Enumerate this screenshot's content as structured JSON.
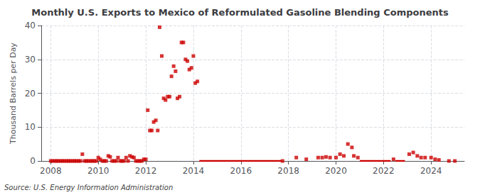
{
  "chart_data": {
    "type": "scatter",
    "title": "Monthly U.S. Exports to Mexico of Reformulated Gasoline Blending Components",
    "ylabel": "Thousand Barrels per Day",
    "annotation": "Source: U.S. Energy Information Administration",
    "xlim": [
      2007.6,
      2025.4
    ],
    "xticks": [
      2008,
      2010,
      2012,
      2014,
      2016,
      2018,
      2020,
      2022,
      2024
    ],
    "ylim": [
      0,
      40
    ],
    "yticks": [
      0,
      10,
      20,
      30,
      40
    ],
    "grid": true,
    "series": [
      {
        "type": "scatter",
        "color": "#cc0000",
        "marker": "square",
        "x": [
          2008.0,
          2008.08,
          2008.17,
          2008.25,
          2008.33,
          2008.42,
          2008.5,
          2008.58,
          2008.67,
          2008.75,
          2008.83,
          2008.92,
          2009.0,
          2009.08,
          2009.17,
          2009.25,
          2009.33,
          2009.42,
          2009.5,
          2009.58,
          2009.67,
          2009.75,
          2009.83,
          2009.92,
          2010.0,
          2010.08,
          2010.17,
          2010.25,
          2010.33,
          2010.42,
          2010.5,
          2010.58,
          2010.67,
          2010.75,
          2010.83,
          2010.92,
          2011.0,
          2011.08,
          2011.17,
          2011.25,
          2011.33,
          2011.42,
          2011.5,
          2011.58,
          2011.67,
          2011.75,
          2011.83,
          2011.92,
          2012.0,
          2012.08,
          2012.17,
          2012.25,
          2012.33,
          2012.42,
          2012.5,
          2012.58,
          2012.67,
          2012.75,
          2012.83,
          2012.92,
          2013.0,
          2013.08,
          2013.17,
          2013.25,
          2013.33,
          2013.42,
          2013.5,
          2013.58,
          2013.67,
          2013.75,
          2013.83,
          2013.92,
          2014.0,
          2014.08,
          2014.17,
          2017.75,
          2018.33,
          2018.75,
          2019.25,
          2019.42,
          2019.58,
          2019.75,
          2020.0,
          2020.17,
          2020.33,
          2020.5,
          2020.67,
          2020.75,
          2020.92,
          2022.42,
          2023.08,
          2023.25,
          2023.42,
          2023.58,
          2023.75,
          2024.0,
          2024.17,
          2024.33,
          2024.75,
          2025.0
        ],
        "values": [
          0.0,
          0.0,
          0.0,
          0.0,
          0.0,
          0.0,
          0.0,
          0.0,
          0.0,
          0.0,
          0.0,
          0.0,
          0.0,
          0.0,
          0.0,
          0.0,
          2.0,
          0.0,
          0.0,
          0.0,
          0.0,
          0.0,
          0.0,
          0.0,
          1.0,
          0.5,
          0.0,
          0.0,
          0.0,
          1.5,
          1.2,
          0.0,
          0.0,
          0.0,
          1.0,
          0.0,
          0.0,
          0.0,
          1.0,
          0.0,
          1.5,
          1.2,
          1.0,
          0.0,
          0.0,
          0.0,
          0.0,
          0.5,
          0.5,
          15.0,
          9.0,
          9.0,
          11.5,
          12.0,
          9.0,
          39.5,
          31.0,
          18.5,
          18.0,
          19.0,
          19.0,
          25.0,
          28.0,
          26.5,
          18.5,
          19.0,
          35.0,
          35.0,
          30.0,
          29.5,
          27.0,
          27.5,
          31.0,
          23.0,
          23.5,
          0.0,
          1.0,
          0.5,
          1.0,
          1.0,
          1.2,
          1.0,
          1.0,
          2.0,
          1.5,
          5.0,
          4.0,
          1.5,
          1.0,
          0.5,
          2.0,
          2.5,
          1.5,
          1.0,
          1.0,
          1.0,
          0.5,
          0.3,
          0.0,
          0.0
        ]
      },
      {
        "type": "line",
        "color": "#cc0000",
        "x": [
          2014.25,
          2017.7
        ],
        "values": [
          0,
          0
        ]
      },
      {
        "type": "line",
        "color": "#cc0000",
        "x": [
          2021.0,
          2022.3
        ],
        "values": [
          0,
          0
        ]
      },
      {
        "type": "line",
        "color": "#cc0000",
        "x": [
          2022.5,
          2022.9
        ],
        "values": [
          0,
          0
        ]
      }
    ]
  }
}
